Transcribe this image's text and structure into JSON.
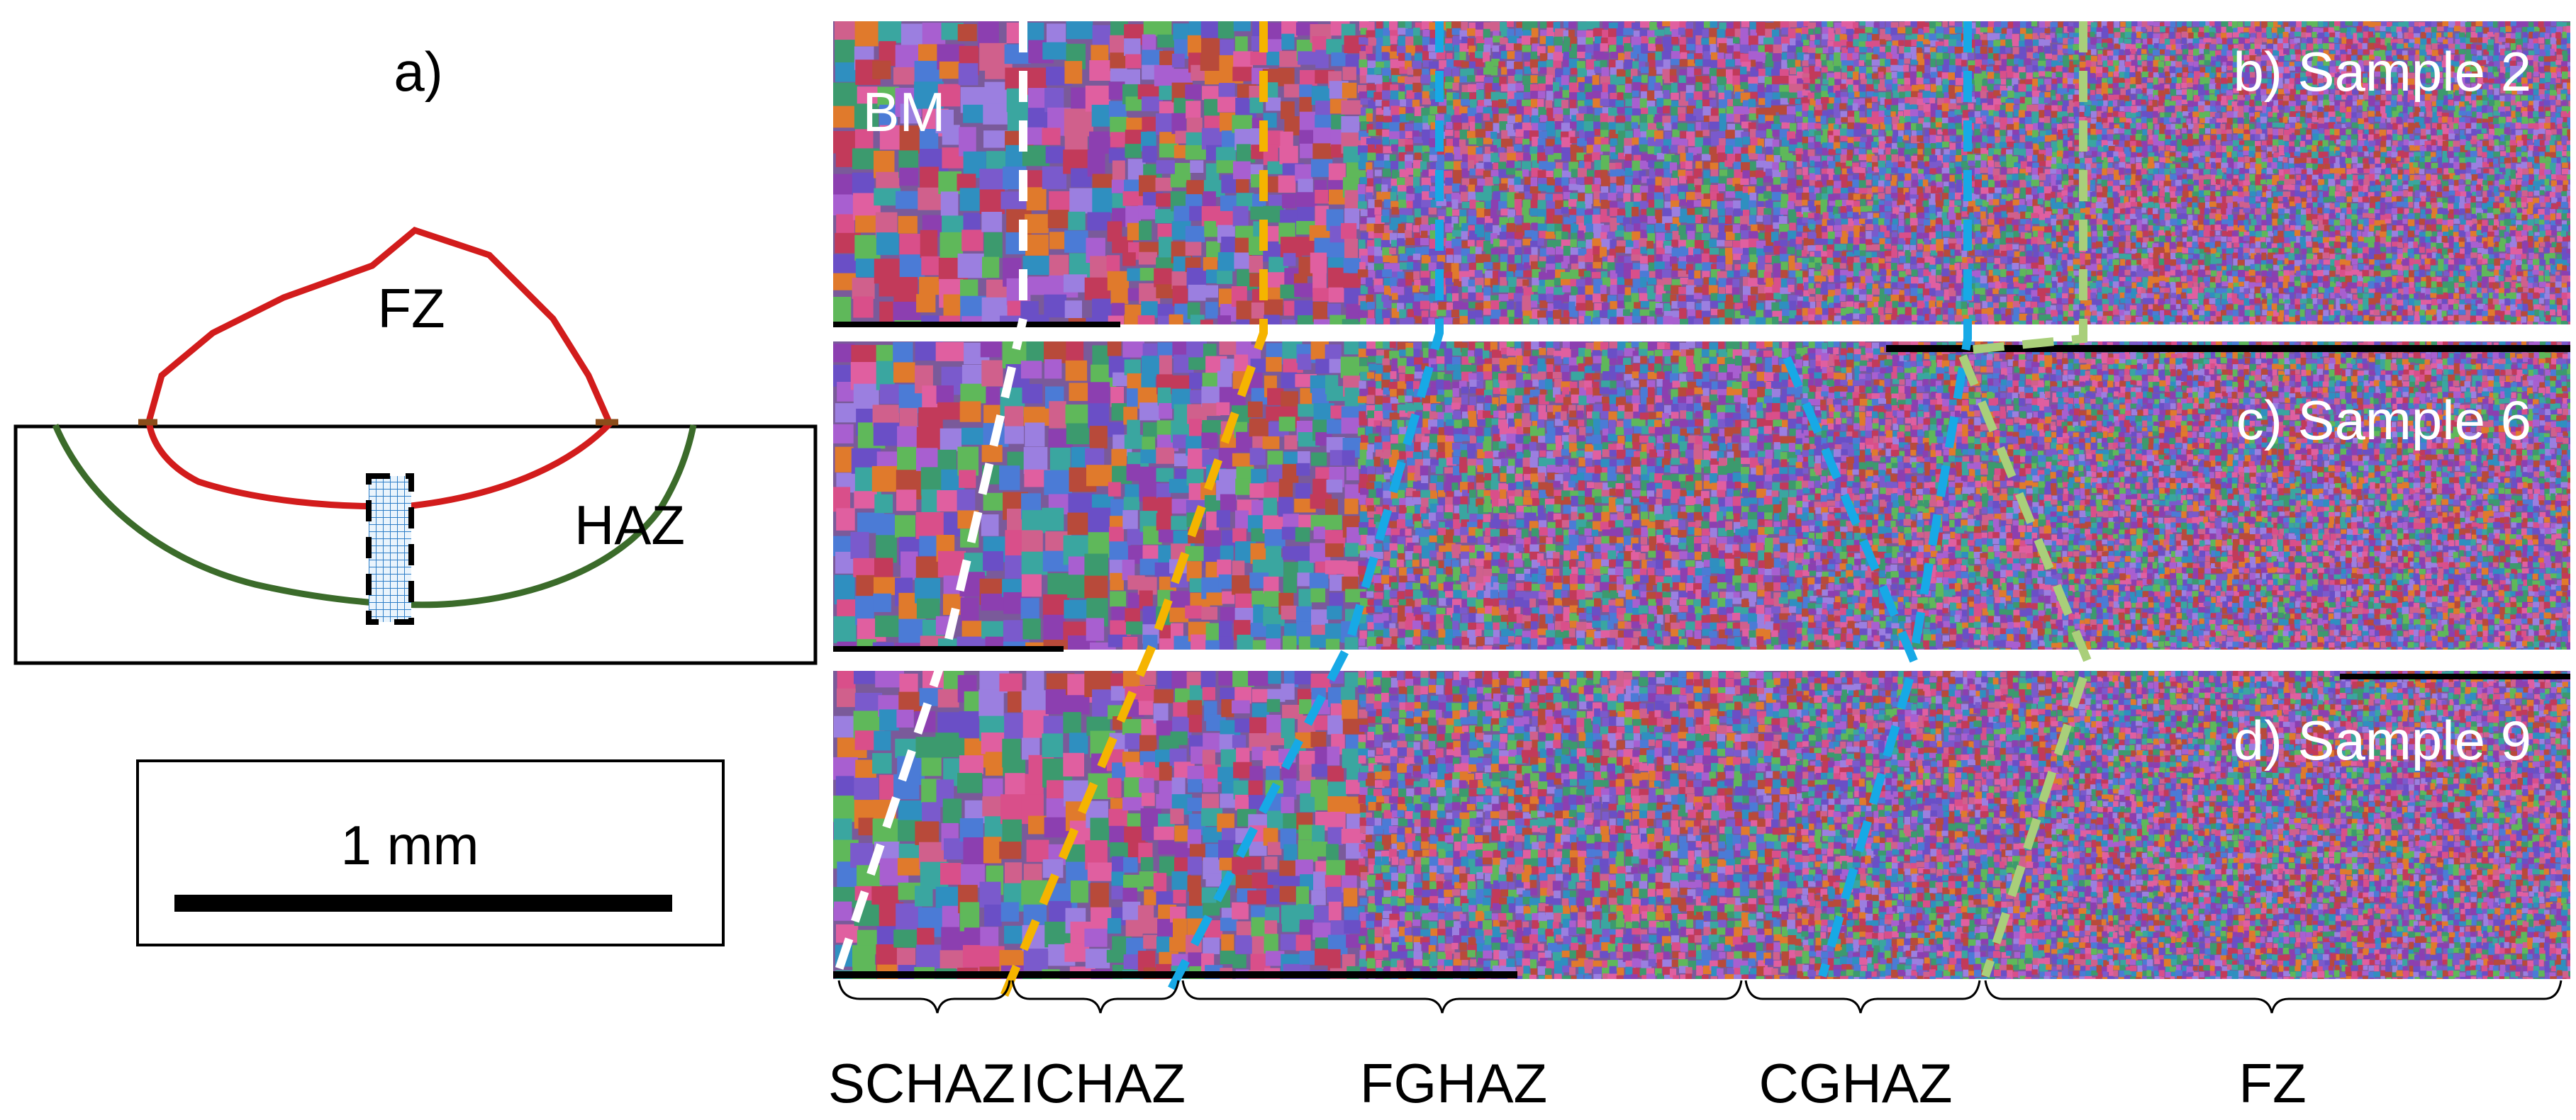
{
  "panel_a": {
    "label": "a)",
    "fz_label": "FZ",
    "haz_label": "HAZ",
    "fz_color": "#d21c1c",
    "haz_color": "#3b6b2a",
    "outline_color": "#000000",
    "probe_color": "#7fb6e6"
  },
  "scale_bar": {
    "label": "1 mm",
    "color": "#000000"
  },
  "samples": [
    {
      "key": "sample2",
      "label": "b) Sample 2"
    },
    {
      "key": "sample6",
      "label": "c) Sample 6"
    },
    {
      "key": "sample9",
      "label": "d) Sample 9"
    }
  ],
  "base_metal_label": "BM",
  "zones": [
    {
      "key": "schaz",
      "label": "SCHAZ"
    },
    {
      "key": "ichaz",
      "label": "ICHAZ"
    },
    {
      "key": "fghaz",
      "label": "FGHAZ"
    },
    {
      "key": "cghaz",
      "label": "CGHAZ"
    },
    {
      "key": "fz",
      "label": "FZ"
    }
  ],
  "boundary_colors": {
    "white": "#ffffff",
    "yellow": "#f5b400",
    "blue": "#17a9e6",
    "green": "#a9cf7a"
  },
  "grain_palette": [
    "#6a4fc6",
    "#d94f8a",
    "#3aa6a0",
    "#8c3fb0",
    "#e07a2c",
    "#4b7bd6",
    "#c23a5a",
    "#5fb85a",
    "#a85fd0",
    "#2f8fc0",
    "#d0608c",
    "#7a5acc",
    "#b84a3a",
    "#3c9a6e",
    "#9b7fe0",
    "#e05fa0"
  ]
}
